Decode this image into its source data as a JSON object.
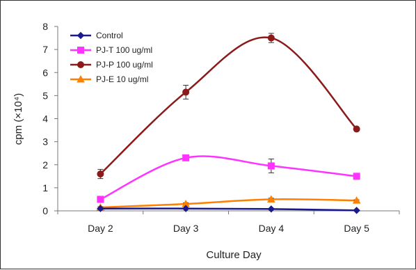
{
  "chart_data": {
    "type": "line",
    "title": "",
    "xlabel": "Culture Day",
    "ylabel": "cpm (×10⁴)",
    "categories": [
      "Day 2",
      "Day 3",
      "Day 4",
      "Day 5"
    ],
    "ylim": [
      0,
      8
    ],
    "yticks": [
      "0",
      "1",
      "2",
      "3",
      "4",
      "5",
      "6",
      "7",
      "8"
    ],
    "grid": false,
    "legend_position": "top-left",
    "series": [
      {
        "name": "Control",
        "marker": "diamond",
        "color": "#1a1a8c",
        "values": [
          0.1,
          0.1,
          0.08,
          0.02
        ],
        "errors": [
          0,
          0,
          0,
          0
        ]
      },
      {
        "name": "PJ-T 100 ug/ml",
        "marker": "square",
        "color": "#ff33ff",
        "values": [
          0.5,
          2.3,
          1.95,
          1.5
        ],
        "errors": [
          0,
          0.05,
          0.3,
          0.05
        ]
      },
      {
        "name": "PJ-P 100 ug/ml",
        "marker": "circle",
        "color": "#8b1a1a",
        "values": [
          1.6,
          5.15,
          7.5,
          3.55
        ],
        "errors": [
          0.2,
          0.3,
          0.2,
          0
        ]
      },
      {
        "name": "PJ-E  10 ug/ml",
        "marker": "triangle",
        "color": "#ff8000",
        "values": [
          0.15,
          0.3,
          0.5,
          0.45
        ],
        "errors": [
          0.03,
          0.05,
          0.05,
          0.03
        ]
      }
    ]
  }
}
